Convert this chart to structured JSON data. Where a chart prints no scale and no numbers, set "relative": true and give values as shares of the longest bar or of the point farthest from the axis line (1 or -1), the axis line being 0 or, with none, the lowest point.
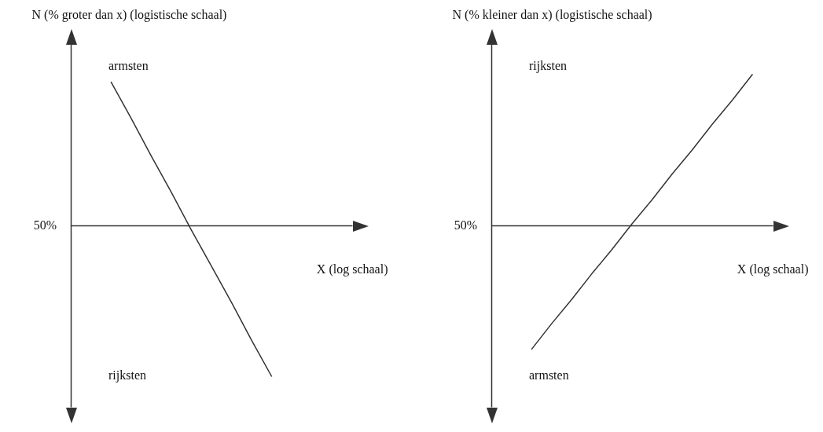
{
  "chart_data": [
    {
      "type": "line",
      "relative": true,
      "ylabel": "N (% groter dan x) (logistische schaal)",
      "xlabel": "X (log schaal)",
      "categories": [
        null,
        null,
        null,
        null,
        null,
        null,
        null,
        null,
        null,
        null,
        null,
        null,
        null,
        null,
        null
      ],
      "series": [
        {
          "color": "#333333",
          "values": [
            null,
            null,
            0.95,
            0.71,
            0.46,
            0.22,
            -0.03,
            -0.27,
            -0.51,
            -0.76,
            -1,
            null,
            null,
            null,
            null
          ]
        }
      ],
      "annotations": [
        "50%",
        "armsten",
        "rijksten"
      ]
    },
    {
      "type": "line",
      "relative": true,
      "ylabel": "N (% kleiner dan x) (logistische schaal)",
      "xlabel": "X (log schaal)",
      "categories": [
        null,
        null,
        null,
        null,
        null,
        null,
        null,
        null,
        null,
        null,
        null,
        null,
        null,
        null,
        null
      ],
      "series": [
        {
          "color": "#333333",
          "values": [
            null,
            null,
            -0.82,
            -0.65,
            -0.49,
            -0.32,
            -0.16,
            0.01,
            0.17,
            0.34,
            0.5,
            0.67,
            0.83,
            1,
            null
          ]
        }
      ],
      "annotations": [
        "50%",
        "rijksten",
        "armsten"
      ]
    }
  ]
}
